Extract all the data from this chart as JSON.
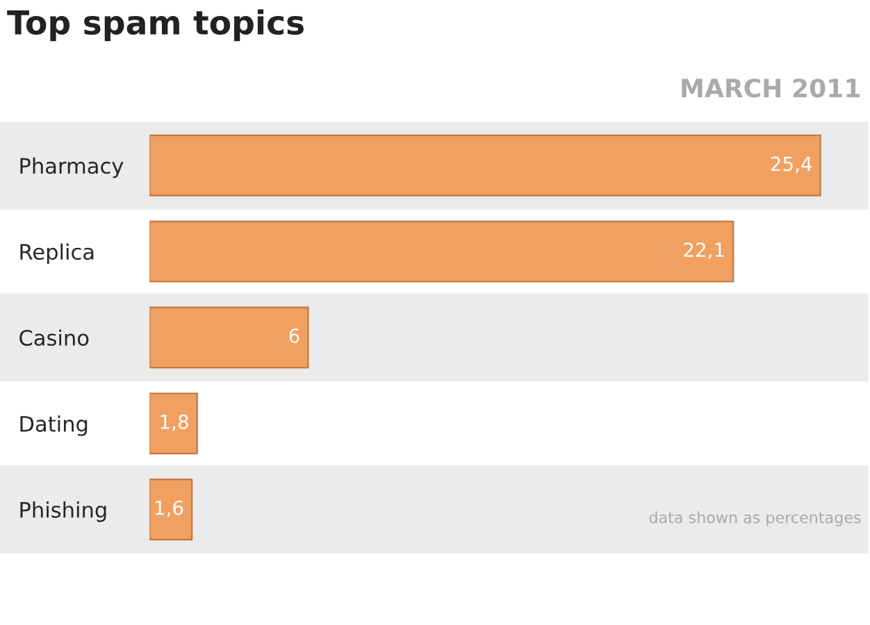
{
  "chart_data": {
    "type": "bar",
    "orientation": "horizontal",
    "title": "Top spam topics",
    "categories": [
      "Pharmacy",
      "Replica",
      "Casino",
      "Dating",
      "Phishing"
    ],
    "values": [
      25.4,
      22.1,
      6,
      1.8,
      1.6
    ],
    "value_labels": [
      "25,4",
      "22,1",
      "6",
      "1,8",
      "1,6"
    ],
    "color": "#f0a060",
    "annotations": [
      "MARCH 2011",
      "data shown as percentages"
    ],
    "grid": false,
    "legend": false
  }
}
